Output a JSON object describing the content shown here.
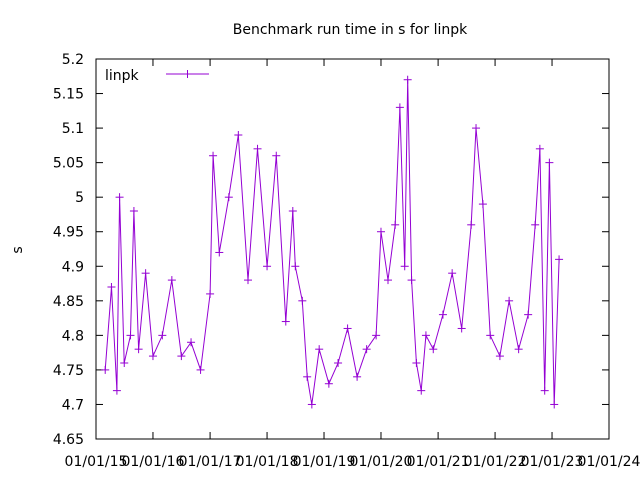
{
  "chart_data": {
    "type": "line",
    "title": "Benchmark run time in s for linpk",
    "xlabel": "",
    "ylabel": "s",
    "ylim": [
      4.65,
      5.2
    ],
    "yticks": [
      4.65,
      4.7,
      4.75,
      4.8,
      4.85,
      4.9,
      4.95,
      5,
      5.05,
      5.1,
      5.15,
      5.2
    ],
    "ytick_labels": [
      "4.65",
      "4.7",
      "4.75",
      "4.8",
      "4.85",
      "4.9",
      "4.95",
      "5",
      "5.05",
      "5.1",
      "5.15",
      "5.2"
    ],
    "xlim": [
      "2015-01-01",
      "2024-01-01"
    ],
    "xticks": [
      "2015-01-01",
      "2016-01-01",
      "2017-01-01",
      "2018-01-01",
      "2019-01-01",
      "2020-01-01",
      "2021-01-01",
      "2022-01-01",
      "2023-01-01",
      "2024-01-01"
    ],
    "xtick_labels": [
      "01/01/15",
      "01/01/16",
      "01/01/17",
      "01/01/18",
      "01/01/19",
      "01/01/20",
      "01/01/21",
      "01/01/22",
      "01/01/23",
      "01/01/24"
    ],
    "legend": {
      "position": "top-left",
      "entries": [
        "linpk"
      ]
    },
    "grid": false,
    "series": [
      {
        "name": "linpk",
        "color": "#9400D3",
        "marker": "plus",
        "points": [
          [
            "2015-03-01",
            4.75
          ],
          [
            "2015-04-10",
            4.87
          ],
          [
            "2015-05-15",
            4.72
          ],
          [
            "2015-06-01",
            5.0
          ],
          [
            "2015-07-01",
            4.76
          ],
          [
            "2015-08-10",
            4.8
          ],
          [
            "2015-09-01",
            4.98
          ],
          [
            "2015-10-01",
            4.78
          ],
          [
            "2015-11-15",
            4.89
          ],
          [
            "2016-01-01",
            4.77
          ],
          [
            "2016-03-01",
            4.8
          ],
          [
            "2016-05-01",
            4.88
          ],
          [
            "2016-07-01",
            4.77
          ],
          [
            "2016-09-01",
            4.79
          ],
          [
            "2016-11-01",
            4.75
          ],
          [
            "2017-01-01",
            4.86
          ],
          [
            "2017-01-20",
            5.06
          ],
          [
            "2017-03-01",
            4.92
          ],
          [
            "2017-05-01",
            5.0
          ],
          [
            "2017-07-01",
            5.09
          ],
          [
            "2017-09-01",
            4.88
          ],
          [
            "2017-11-01",
            5.07
          ],
          [
            "2018-01-01",
            4.9
          ],
          [
            "2018-03-01",
            5.06
          ],
          [
            "2018-05-01",
            4.82
          ],
          [
            "2018-06-15",
            4.98
          ],
          [
            "2018-07-01",
            4.9
          ],
          [
            "2018-08-15",
            4.85
          ],
          [
            "2018-09-15",
            4.74
          ],
          [
            "2018-10-15",
            4.7
          ],
          [
            "2018-12-01",
            4.78
          ],
          [
            "2019-02-01",
            4.73
          ],
          [
            "2019-04-01",
            4.76
          ],
          [
            "2019-06-01",
            4.81
          ],
          [
            "2019-08-01",
            4.74
          ],
          [
            "2019-10-01",
            4.78
          ],
          [
            "2019-12-01",
            4.8
          ],
          [
            "2020-01-01",
            4.95
          ],
          [
            "2020-02-15",
            4.88
          ],
          [
            "2020-04-01",
            4.96
          ],
          [
            "2020-05-01",
            5.13
          ],
          [
            "2020-06-01",
            4.9
          ],
          [
            "2020-06-20",
            5.17
          ],
          [
            "2020-07-15",
            4.88
          ],
          [
            "2020-08-15",
            4.76
          ],
          [
            "2020-09-15",
            4.72
          ],
          [
            "2020-10-15",
            4.8
          ],
          [
            "2020-12-01",
            4.78
          ],
          [
            "2021-02-01",
            4.83
          ],
          [
            "2021-04-01",
            4.89
          ],
          [
            "2021-06-01",
            4.81
          ],
          [
            "2021-08-01",
            4.96
          ],
          [
            "2021-09-01",
            5.1
          ],
          [
            "2021-10-15",
            4.99
          ],
          [
            "2021-12-01",
            4.8
          ],
          [
            "2022-02-01",
            4.77
          ],
          [
            "2022-04-01",
            4.85
          ],
          [
            "2022-06-01",
            4.78
          ],
          [
            "2022-08-01",
            4.83
          ],
          [
            "2022-09-15",
            4.96
          ],
          [
            "2022-10-15",
            5.07
          ],
          [
            "2022-11-15",
            4.72
          ],
          [
            "2022-12-15",
            5.05
          ],
          [
            "2023-01-15",
            4.7
          ],
          [
            "2023-02-15",
            4.91
          ]
        ]
      }
    ]
  }
}
